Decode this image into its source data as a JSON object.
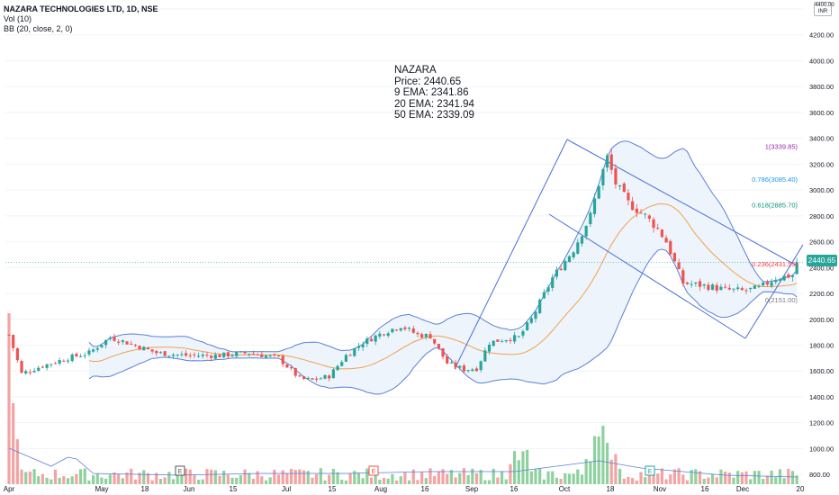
{
  "header": {
    "title": "NAZARA TECHNOLOGIES LTD, 1D, NSE",
    "volume": "Vol (10)",
    "bollinger": "BB (20, close, 2, 0)"
  },
  "info_box": {
    "symbol": "NAZARA",
    "price": "Price: 2440.65",
    "ema9": "9 EMA: 2341.86",
    "ema20": "20 EMA: 2341.94",
    "ema50": "50 EMA: 2339.09"
  },
  "price_pill": "2440.65",
  "currency": {
    "top": "4400.00",
    "label": "INR"
  },
  "colors": {
    "up": "#26a69a",
    "down": "#ef5350",
    "vol_up": "#8fd19e",
    "vol_down": "#f3a3a3",
    "band": "#5b7fd8",
    "band_fill": "#eef4fb",
    "basis": "#f0a050",
    "channel": "#4a6fd8",
    "fib_1": "#9c27b0",
    "fib_0786": "#2196f3",
    "fib_0618": "#089981",
    "fib_0236": "#f23645",
    "fib_0": "#787b86"
  },
  "chart_data": {
    "type": "candlestick",
    "y_axis": {
      "range": [
        780,
        4400
      ],
      "ticks": [
        "4400.00",
        "4200.00",
        "4000.00",
        "3800.00",
        "3600.00",
        "3400.00",
        "3200.00",
        "3000.00",
        "2800.00",
        "2600.00",
        "2400.00",
        "2200.00",
        "2000.00",
        "1800.00",
        "1600.00",
        "1400.00",
        "1200.00",
        "1000.00",
        "800.00"
      ]
    },
    "x_axis": {
      "ticks": [
        "Apr",
        "May",
        "18",
        "Jun",
        "15",
        "Jul",
        "15",
        "Aug",
        "16",
        "Sep",
        "16",
        "Oct",
        "18",
        "Nov",
        "16",
        "Dec",
        "20"
      ]
    },
    "fib_levels": [
      {
        "label": "1(3339.85)",
        "value": 3339.85
      },
      {
        "label": "0.786(3085.40)",
        "value": 3085.4
      },
      {
        "label": "0.618(2885.70)",
        "value": 2885.7
      },
      {
        "label": "0.236(2431.55)",
        "value": 2431.55
      },
      {
        "label": "0(2151.00)",
        "value": 2151.0
      }
    ],
    "price_anchors": [
      [
        0,
        1880
      ],
      [
        3,
        1580
      ],
      [
        8,
        1640
      ],
      [
        14,
        1700
      ],
      [
        19,
        1740
      ],
      [
        24,
        1860
      ],
      [
        28,
        1820
      ],
      [
        35,
        1740
      ],
      [
        42,
        1720
      ],
      [
        50,
        1720
      ],
      [
        57,
        1740
      ],
      [
        64,
        1700
      ],
      [
        69,
        1540
      ],
      [
        72,
        1530
      ],
      [
        76,
        1560
      ],
      [
        80,
        1720
      ],
      [
        84,
        1820
      ],
      [
        89,
        1900
      ],
      [
        93,
        1950
      ],
      [
        97,
        1880
      ],
      [
        100,
        1870
      ],
      [
        104,
        1660
      ],
      [
        108,
        1610
      ],
      [
        111,
        1620
      ],
      [
        114,
        1820
      ],
      [
        118,
        1850
      ],
      [
        121,
        1860
      ],
      [
        124,
        2000
      ],
      [
        129,
        2320
      ],
      [
        134,
        2540
      ],
      [
        138,
        2800
      ],
      [
        140,
        3050
      ],
      [
        142,
        3250
      ],
      [
        144,
        3050
      ],
      [
        147,
        2900
      ],
      [
        151,
        2800
      ],
      [
        154,
        2700
      ],
      [
        156,
        2600
      ],
      [
        160,
        2280
      ],
      [
        165,
        2260
      ],
      [
        170,
        2230
      ],
      [
        174,
        2220
      ],
      [
        178,
        2240
      ],
      [
        182,
        2320
      ],
      [
        186,
        2340
      ],
      [
        187,
        2440
      ]
    ],
    "last_price": 2440.65
  }
}
